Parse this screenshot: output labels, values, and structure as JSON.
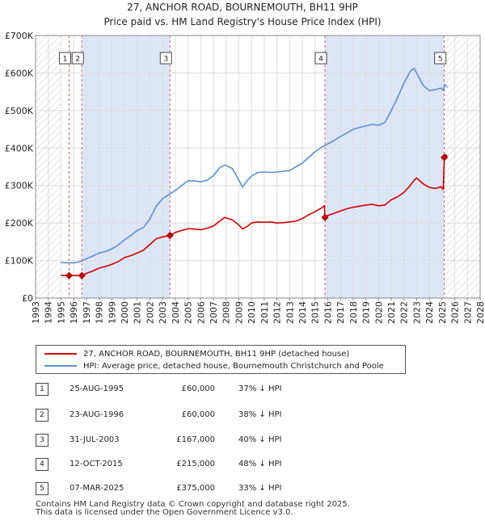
{
  "chart_data": {
    "type": "line",
    "title": "27, ANCHOR ROAD, BOURNEMOUTH, BH11 9HP",
    "subtitle": "Price paid vs. HM Land Registry's House Price Index (HPI)",
    "xlabel": "",
    "ylabel": "",
    "xlim": [
      1993,
      2028
    ],
    "ylim": [
      0,
      700000
    ],
    "x_ticks": [
      1993,
      1994,
      1995,
      1996,
      1997,
      1998,
      1999,
      2000,
      2001,
      2002,
      2003,
      2004,
      2005,
      2006,
      2007,
      2008,
      2009,
      2010,
      2011,
      2012,
      2013,
      2014,
      2015,
      2016,
      2017,
      2018,
      2019,
      2020,
      2021,
      2022,
      2023,
      2024,
      2025,
      2026,
      2027,
      2028
    ],
    "y_ticks": [
      0,
      100000,
      200000,
      300000,
      400000,
      500000,
      600000,
      700000
    ],
    "y_tick_labels": [
      "£0",
      "£100K",
      "£200K",
      "£300K",
      "£400K",
      "£500K",
      "£600K",
      "£700K"
    ],
    "grid": true,
    "colors": {
      "property": "#cc0000",
      "hpi": "#5b8fd4",
      "shade": "#dde6f7",
      "hatch": "#cfcfcf",
      "vline": "#d06060",
      "grid": "#dddddd"
    },
    "shaded_periods": [
      [
        1996.64,
        2003.58
      ],
      [
        2015.78,
        2025.18
      ]
    ],
    "hatched_periods": [
      [
        1993,
        1995.0
      ],
      [
        2025.3,
        2028
      ]
    ],
    "series": [
      {
        "name": "27, ANCHOR ROAD, BOURNEMOUTH, BH11 9HP (detached house)",
        "color": "#cc0000",
        "x": [
          1995.0,
          1995.64,
          1996.0,
          1996.64,
          1997.0,
          1997.5,
          1998.0,
          1998.5,
          1999.0,
          1999.5,
          2000.0,
          2000.5,
          2001.0,
          2001.5,
          2002.0,
          2002.5,
          2003.0,
          2003.58,
          2004.0,
          2004.5,
          2005.0,
          2005.5,
          2006.0,
          2006.5,
          2007.0,
          2007.5,
          2007.9,
          2008.5,
          2009.0,
          2009.3,
          2009.7,
          2010.0,
          2010.5,
          2011.0,
          2011.5,
          2012.0,
          2012.5,
          2013.0,
          2013.5,
          2014.0,
          2014.5,
          2015.0,
          2015.5,
          2015.74,
          2015.78,
          2016.0,
          2016.5,
          2017.0,
          2017.5,
          2018.0,
          2018.5,
          2019.0,
          2019.5,
          2020.0,
          2020.5,
          2021.0,
          2021.5,
          2022.0,
          2022.5,
          2022.8,
          2023.0,
          2023.5,
          2024.0,
          2024.5,
          2024.9,
          2025.1,
          2025.18,
          2025.3,
          2025.4
        ],
        "values": [
          60000,
          60000,
          60000,
          60000,
          66000,
          72000,
          80000,
          84000,
          90000,
          97000,
          108000,
          113000,
          120000,
          128000,
          143000,
          158000,
          163000,
          167000,
          175000,
          180000,
          185000,
          184000,
          182000,
          186000,
          192000,
          205000,
          215000,
          208000,
          195000,
          184000,
          192000,
          200000,
          203000,
          202000,
          203000,
          200000,
          201000,
          203000,
          205000,
          212000,
          222000,
          230000,
          240000,
          246000,
          215000,
          220000,
          226000,
          232000,
          238000,
          242000,
          245000,
          248000,
          250000,
          246000,
          248000,
          262000,
          270000,
          282000,
          300000,
          314000,
          320000,
          305000,
          295000,
          292000,
          297000,
          290000,
          375000,
          382000,
          377000
        ]
      },
      {
        "name": "HPI: Average price, detached house, Bournemouth Christchurch and Poole",
        "color": "#5b8fd4",
        "x": [
          1995.0,
          1995.5,
          1996.0,
          1996.5,
          1997.0,
          1997.5,
          1998.0,
          1998.5,
          1999.0,
          1999.5,
          2000.0,
          2000.5,
          2001.0,
          2001.5,
          2002.0,
          2002.5,
          2003.0,
          2003.5,
          2004.0,
          2004.5,
          2005.0,
          2005.5,
          2006.0,
          2006.5,
          2007.0,
          2007.5,
          2007.9,
          2008.5,
          2009.0,
          2009.3,
          2009.7,
          2010.0,
          2010.5,
          2011.0,
          2011.5,
          2012.0,
          2012.5,
          2013.0,
          2013.5,
          2014.0,
          2014.5,
          2015.0,
          2015.5,
          2016.0,
          2016.5,
          2017.0,
          2017.5,
          2018.0,
          2018.5,
          2019.0,
          2019.5,
          2020.0,
          2020.5,
          2021.0,
          2021.5,
          2022.0,
          2022.5,
          2022.8,
          2023.0,
          2023.5,
          2024.0,
          2024.5,
          2024.9,
          2025.1,
          2025.2,
          2025.3,
          2025.4
        ],
        "values": [
          95000,
          94000,
          94000,
          97000,
          105000,
          112000,
          120000,
          124000,
          131000,
          141000,
          155000,
          167000,
          180000,
          188000,
          211000,
          245000,
          265000,
          276000,
          287000,
          300000,
          313000,
          312000,
          310000,
          314000,
          326000,
          348000,
          355000,
          345000,
          315000,
          296000,
          315000,
          325000,
          335000,
          336000,
          335000,
          336000,
          338000,
          340000,
          350000,
          360000,
          375000,
          390000,
          402000,
          411000,
          420000,
          431000,
          440000,
          450000,
          455000,
          459000,
          463000,
          461000,
          468000,
          500000,
          535000,
          573000,
          605000,
          613000,
          600000,
          568000,
          553000,
          556000,
          560000,
          554000,
          570000,
          566000,
          562000
        ]
      }
    ],
    "transactions": [
      {
        "num": "1",
        "date": "25-AUG-1995",
        "price": "£60,000",
        "delta": "37% ↓ HPI",
        "x": 1995.64,
        "value": 60000
      },
      {
        "num": "2",
        "date": "23-AUG-1996",
        "price": "£60,000",
        "delta": "38% ↓ HPI",
        "x": 1996.64,
        "value": 60000
      },
      {
        "num": "3",
        "date": "31-JUL-2003",
        "price": "£167,000",
        "delta": "40% ↓ HPI",
        "x": 2003.58,
        "value": 167000
      },
      {
        "num": "4",
        "date": "12-OCT-2015",
        "price": "£215,000",
        "delta": "48% ↓ HPI",
        "x": 2015.78,
        "value": 215000
      },
      {
        "num": "5",
        "date": "07-MAR-2025",
        "price": "£375,000",
        "delta": "33% ↓ HPI",
        "x": 2025.18,
        "value": 375000
      }
    ]
  },
  "legend": {
    "property_label": "27, ANCHOR ROAD, BOURNEMOUTH, BH11 9HP (detached house)",
    "hpi_label": "HPI: Average price, detached house, Bournemouth Christchurch and Poole"
  },
  "footer": {
    "line1": "Contains HM Land Registry data © Crown copyright and database right 2025.",
    "line2": "This data is licensed under the Open Government Licence v3.0."
  }
}
